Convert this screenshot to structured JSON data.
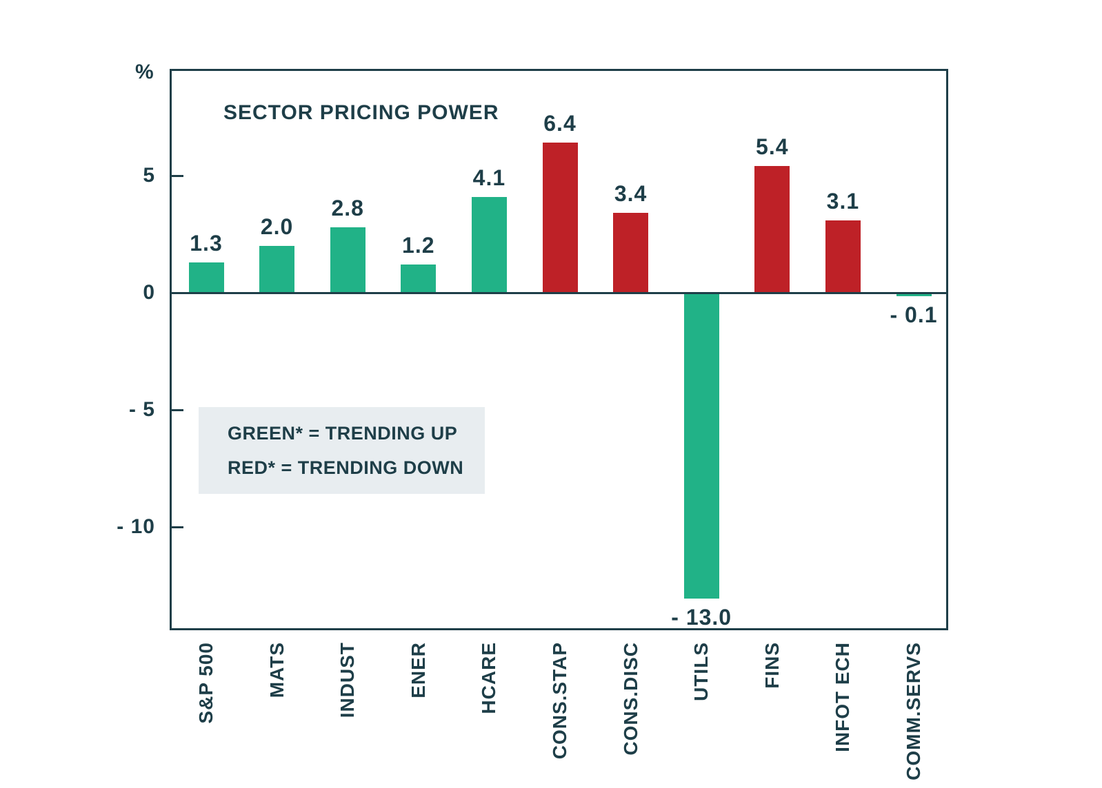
{
  "chart_data": {
    "type": "bar",
    "title": "SECTOR PRICING POWER",
    "ylabel": "%",
    "xlabel": "",
    "categories": [
      "S&P 500",
      "MATS",
      "INDUST",
      "ENER",
      "HCARE",
      "CONS.STAP",
      "CONS.DISC",
      "UTILS",
      "FINS",
      "INFOT ECH",
      "COMM.SERVS"
    ],
    "values": [
      1.3,
      2.0,
      2.8,
      1.2,
      4.1,
      6.4,
      3.4,
      -13.0,
      5.4,
      3.1,
      -0.1
    ],
    "value_labels": [
      "1.3",
      "2.0",
      "2.8",
      "1.2",
      "4.1",
      "6.4",
      "3.4",
      "- 13.0",
      "5.4",
      "3.1",
      "- 0.1"
    ],
    "bar_colors": [
      "green",
      "green",
      "green",
      "green",
      "green",
      "red",
      "red",
      "green",
      "red",
      "red",
      "green"
    ],
    "ylim": [
      -14.4,
      9.6
    ],
    "yticks": [
      {
        "value": 5,
        "label": "5"
      },
      {
        "value": 0,
        "label": "0"
      },
      {
        "value": -5,
        "label": "- 5"
      },
      {
        "value": -10,
        "label": "- 10"
      }
    ],
    "grid": false,
    "legend": {
      "position": "middle-left",
      "lines": [
        "GREEN* = TRENDING UP",
        "RED* = TRENDING DOWN"
      ]
    }
  },
  "colors": {
    "green": "#21b287",
    "red": "#be2127",
    "text": "#1e3e48",
    "axis": "#1e3e48",
    "legend_bg": "#e8edf0"
  }
}
